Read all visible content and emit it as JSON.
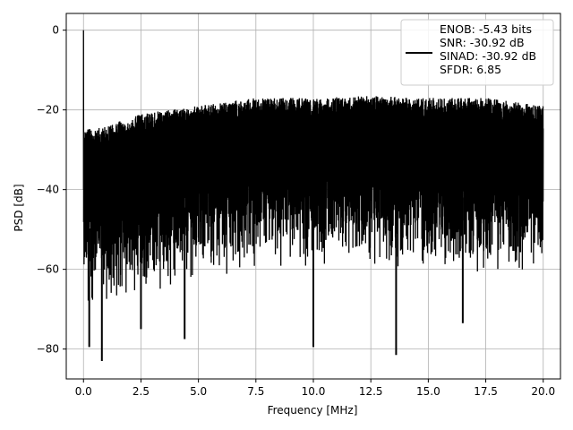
{
  "chart_data": {
    "type": "line",
    "title": "",
    "xlabel": "Frequency [MHz]",
    "ylabel": "PSD [dB]",
    "xlim": [
      -0.75,
      20.75
    ],
    "ylim": [
      -87.5,
      4.2
    ],
    "xticks": [
      0.0,
      2.5,
      5.0,
      7.5,
      10.0,
      12.5,
      15.0,
      17.5,
      20.0
    ],
    "xtick_labels": [
      "0.0",
      "2.5",
      "5.0",
      "7.5",
      "10.0",
      "12.5",
      "15.0",
      "17.5",
      "20.0"
    ],
    "yticks": [
      0,
      -20,
      -40,
      -60,
      -80
    ],
    "ytick_labels": [
      "0",
      "−20",
      "−40",
      "−60",
      "−80"
    ],
    "grid": true,
    "legend_placement": "top-right",
    "series": [
      {
        "name": "ENOB: -5.43 bits\nSNR: -30.92 dB\nSINAD: -30.92 dB\nSFDR: 6.85",
        "color": "#000000",
        "description_points": {
          "peak": [
            0.0,
            0.0
          ],
          "envelope_top": [
            [
              0.0,
              -25
            ],
            [
              1.0,
              -24
            ],
            [
              2.5,
              -21
            ],
            [
              5.0,
              -19
            ],
            [
              7.5,
              -17
            ],
            [
              10.0,
              -17
            ],
            [
              12.5,
              -16.5
            ],
            [
              15.0,
              -17
            ],
            [
              17.5,
              -17
            ],
            [
              20.0,
              -19
            ]
          ],
          "envelope_bottom": [
            [
              0.0,
              -70
            ],
            [
              2.5,
              -68
            ],
            [
              5.0,
              -63
            ],
            [
              10.0,
              -60
            ],
            [
              15.0,
              -60
            ],
            [
              20.0,
              -63
            ]
          ],
          "deep_dips": [
            [
              0.25,
              -79.5
            ],
            [
              0.8,
              -83
            ],
            [
              2.5,
              -75
            ],
            [
              4.4,
              -77.5
            ],
            [
              10.0,
              -79.5
            ],
            [
              13.6,
              -81.5
            ],
            [
              16.5,
              -73.5
            ]
          ]
        }
      }
    ]
  }
}
